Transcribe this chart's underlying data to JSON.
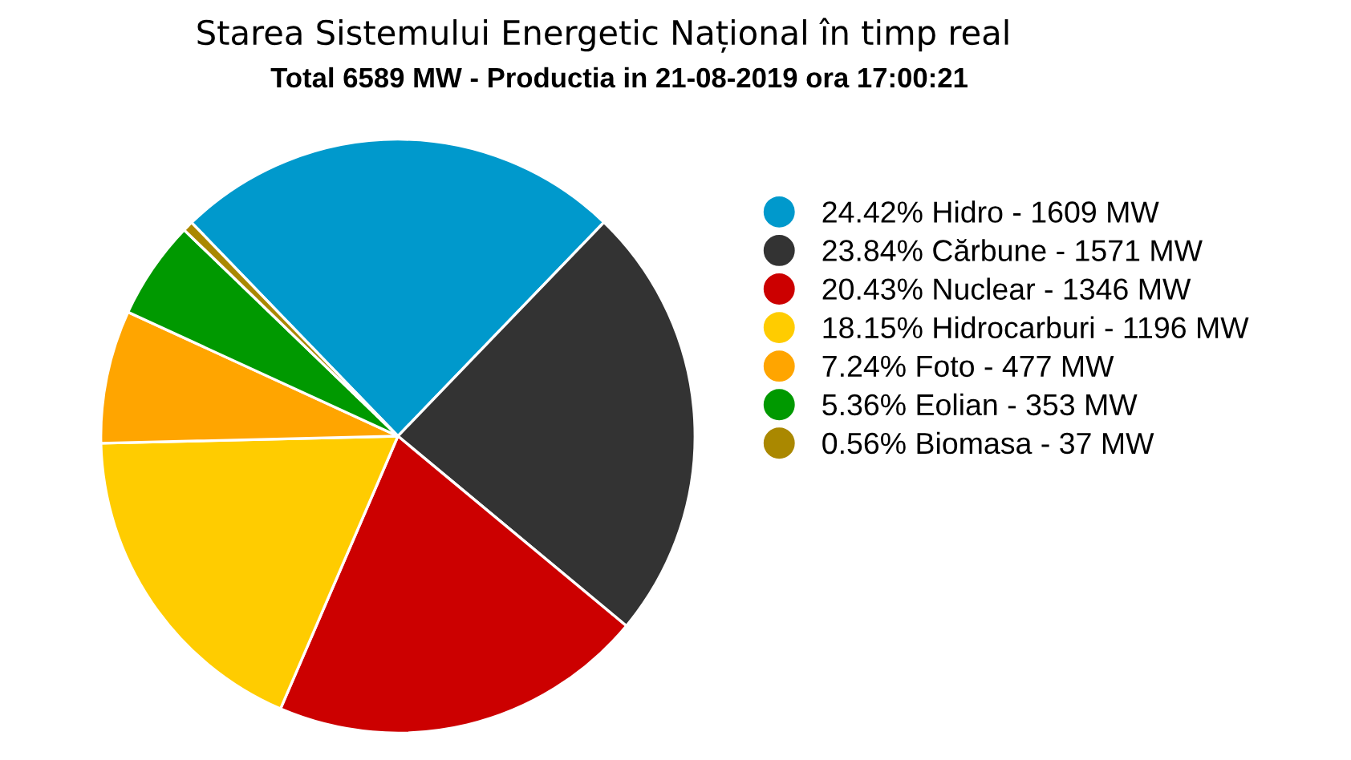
{
  "chart_data": {
    "type": "pie",
    "title": "Starea Sistemului Energetic Național în timp real",
    "subtitle": "Total 6589 MW - Productia in 21-08-2019 ora 17:00:21",
    "categories": [
      "24.42% Hidro - 1609 MW",
      "23.84% Cărbune - 1571 MW",
      "20.43% Nuclear - 1346 MW",
      "18.15% Hidrocarburi - 1196 MW",
      "7.24% Foto - 477 MW",
      "5.36% Eolian - 353 MW",
      "0.56% Biomasa - 37 MW"
    ],
    "values": [
      24.42,
      23.84,
      20.43,
      18.15,
      7.24,
      5.36,
      0.56
    ],
    "colors": [
      "#0099cc",
      "#333333",
      "#cc0000",
      "#ffcc00",
      "#ffa500",
      "#009900",
      "#aa8800"
    ],
    "legend": "right"
  }
}
